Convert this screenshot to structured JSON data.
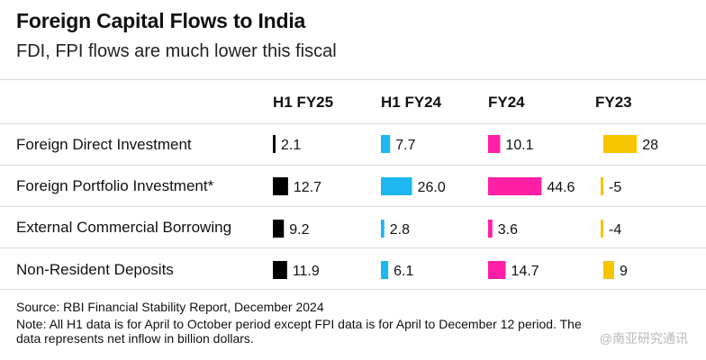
{
  "title": "Foreign Capital Flows to India",
  "subtitle": "FDI, FPI flows are much lower this fiscal",
  "columns": [
    "H1 FY25",
    "H1 FY24",
    "FY24",
    "FY23"
  ],
  "rows": [
    "Foreign Direct Investment",
    "Foreign Portfolio Investment*",
    "External Commercial Borrowing",
    "Non-Resident Deposits"
  ],
  "colors": [
    "#000000",
    "#1eb7f0",
    "#ff1fa5",
    "#f7c400"
  ],
  "chart_data": {
    "type": "bar",
    "orientation": "horizontal",
    "unit": "billion dollars",
    "categories": [
      "Foreign Direct Investment",
      "Foreign Portfolio Investment*",
      "External Commercial Borrowing",
      "Non-Resident Deposits"
    ],
    "series": [
      {
        "name": "H1 FY25",
        "values": [
          2.1,
          12.7,
          9.2,
          11.9
        ],
        "labels": [
          "2.1",
          "12.7",
          "9.2",
          "11.9"
        ]
      },
      {
        "name": "H1 FY24",
        "values": [
          7.7,
          26.0,
          2.8,
          6.1
        ],
        "labels": [
          "7.7",
          "26.0",
          "2.8",
          "6.1"
        ]
      },
      {
        "name": "FY24",
        "values": [
          10.1,
          44.6,
          3.6,
          14.7
        ],
        "labels": [
          "10.1",
          "44.6",
          "3.6",
          "14.7"
        ]
      },
      {
        "name": "FY23",
        "values": [
          28,
          -5,
          -4,
          9
        ],
        "labels": [
          "28",
          "-5",
          "-4",
          "9"
        ]
      }
    ]
  },
  "source": "Source: RBI Financial Stability Report, December 2024",
  "note_line1": "Note: All H1 data is for April to October period except FPI data is for April to December 12 period. The",
  "note_line2": "data represents net inflow in billion dollars.",
  "watermark": "@南亚研究通讯"
}
